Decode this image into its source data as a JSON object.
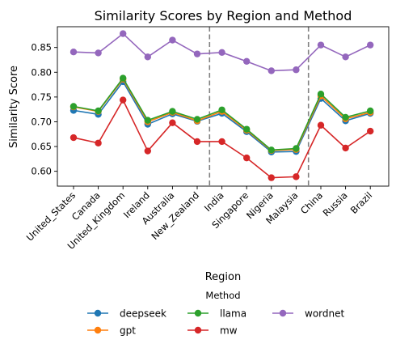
{
  "chart_data": {
    "type": "line",
    "title": "Similarity Scores by Region and Method",
    "xlabel": "Region",
    "ylabel": "Similarity Score",
    "categories": [
      "United_States",
      "Canada",
      "United_Kingdom",
      "Ireland",
      "Australia",
      "New_Zealand",
      "India",
      "Singapore",
      "Nigeria",
      "Malaysia",
      "China",
      "Russia",
      "Brazil"
    ],
    "ylim": [
      0.57,
      0.892
    ],
    "yticks": [
      "0.60",
      "0.65",
      "0.70",
      "0.75",
      "0.80",
      "0.85"
    ],
    "grid": false,
    "legend_title": "Method",
    "legend_position": "bottom-center",
    "dividers_after_category_index": [
      5,
      9
    ],
    "series": [
      {
        "name": "deepseek",
        "color": "#1f77b4",
        "values": [
          0.723,
          0.715,
          0.781,
          0.695,
          0.716,
          0.701,
          0.717,
          0.68,
          0.639,
          0.64,
          0.747,
          0.702,
          0.717
        ]
      },
      {
        "name": "gpt",
        "color": "#ff7f0e",
        "values": [
          0.73,
          0.721,
          0.786,
          0.7,
          0.719,
          0.702,
          0.721,
          0.683,
          0.642,
          0.644,
          0.752,
          0.706,
          0.719
        ]
      },
      {
        "name": "llama",
        "color": "#2ca02c",
        "values": [
          0.731,
          0.722,
          0.788,
          0.703,
          0.721,
          0.705,
          0.724,
          0.685,
          0.643,
          0.646,
          0.756,
          0.709,
          0.722
        ]
      },
      {
        "name": "mw",
        "color": "#d62728",
        "values": [
          0.668,
          0.657,
          0.744,
          0.641,
          0.698,
          0.66,
          0.66,
          0.627,
          0.587,
          0.589,
          0.693,
          0.647,
          0.681
        ]
      },
      {
        "name": "wordnet",
        "color": "#9467bd",
        "values": [
          0.841,
          0.839,
          0.878,
          0.831,
          0.865,
          0.837,
          0.84,
          0.822,
          0.803,
          0.805,
          0.855,
          0.831,
          0.855
        ]
      }
    ]
  }
}
